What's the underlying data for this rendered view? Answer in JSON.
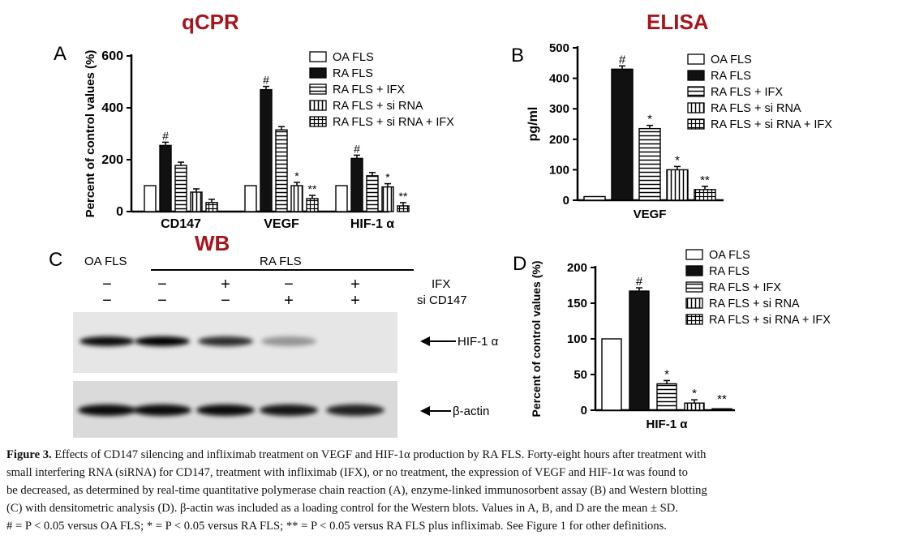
{
  "methods": {
    "a": "qCPR",
    "b": "ELISA",
    "c": "WB"
  },
  "colors": {
    "method_label": "#a8141c"
  },
  "legend": [
    "OA FLS",
    "RA FLS",
    "RA FLS + IFX",
    "RA FLS + si RNA",
    "RA FLS + si RNA + IFX"
  ],
  "chart_data": [
    {
      "panel": "A",
      "type": "bar",
      "ylabel": "Percent of control values (%)",
      "ylim": [
        0,
        600
      ],
      "yticks": [
        "0",
        "200",
        "400",
        "600"
      ],
      "categories": [
        "CD147",
        "VEGF",
        "HIF-1 α"
      ],
      "series": [
        {
          "name": "OA FLS",
          "values": [
            100,
            100,
            100
          ]
        },
        {
          "name": "RA FLS",
          "values": [
            255,
            470,
            205
          ]
        },
        {
          "name": "RA FLS + IFX",
          "values": [
            178,
            315,
            138
          ]
        },
        {
          "name": "RA FLS + si RNA",
          "values": [
            75,
            100,
            95
          ]
        },
        {
          "name": "RA FLS + si RNA + IFX",
          "values": [
            35,
            50,
            22
          ]
        }
      ],
      "annotations": [
        [
          "",
          "#",
          "",
          "",
          ""
        ],
        [
          "",
          "#",
          "",
          "*",
          "**"
        ],
        [
          "",
          "#",
          "",
          "*",
          "**"
        ]
      ]
    },
    {
      "panel": "B",
      "type": "bar",
      "ylabel": "pg/ml",
      "ylim": [
        0,
        500
      ],
      "yticks": [
        "0",
        "100",
        "200",
        "300",
        "400",
        "500"
      ],
      "categories": [
        "VEGF"
      ],
      "series": [
        {
          "name": "OA FLS",
          "values": [
            12
          ]
        },
        {
          "name": "RA FLS",
          "values": [
            430
          ]
        },
        {
          "name": "RA FLS + IFX",
          "values": [
            235
          ]
        },
        {
          "name": "RA FLS + si RNA",
          "values": [
            100
          ]
        },
        {
          "name": "RA FLS + si RNA + IFX",
          "values": [
            35
          ]
        }
      ],
      "annotations": [
        [
          "",
          "#",
          "*",
          "*",
          "**"
        ]
      ]
    },
    {
      "panel": "D",
      "type": "bar",
      "ylabel": "Percent of control values (%)",
      "ylim": [
        0,
        200
      ],
      "yticks": [
        "0",
        "50",
        "100",
        "150",
        "200"
      ],
      "categories": [
        "HIF-1 α"
      ],
      "series": [
        {
          "name": "OA FLS",
          "values": [
            100
          ]
        },
        {
          "name": "RA FLS",
          "values": [
            167
          ]
        },
        {
          "name": "RA FLS + IFX",
          "values": [
            37
          ]
        },
        {
          "name": "RA FLS + si RNA",
          "values": [
            10
          ]
        },
        {
          "name": "RA FLS + si RNA + IFX",
          "values": [
            2
          ]
        }
      ],
      "annotations": [
        [
          "",
          "#",
          "*",
          "*",
          "**"
        ]
      ]
    }
  ],
  "blot": {
    "panel": "C",
    "oa_label": "OA FLS",
    "ra_label": "RA FLS",
    "row_labels": [
      "IFX",
      "si CD147"
    ],
    "ifx": [
      "−",
      "−",
      "+",
      "−",
      "+"
    ],
    "si": [
      "−",
      "−",
      "−",
      "+",
      "+"
    ],
    "band_labels": [
      "HIF-1 α",
      "β-actin"
    ],
    "hif_intensity": [
      0.95,
      1.0,
      0.8,
      0.35,
      0.0
    ],
    "actin_intensity": [
      0.95,
      0.95,
      0.95,
      0.9,
      0.85
    ]
  },
  "caption": {
    "label": "Figure 3.",
    "lines": [
      "Effects of CD147 silencing and infliximab treatment on VEGF and HIF-1α production by RA FLS. Forty-eight hours after treatment with",
      "small interfering RNA (siRNA) for CD147, treatment with infliximab (IFX), or no treatment, the expression of VEGF and HIF-1α was found to",
      "be decreased, as determined by real-time quantitative polymerase chain reaction (A), enzyme-linked immunosorbent assay (B) and Western blotting",
      "(C) with densitometric analysis (D). β-actin was included as a loading control for the Western blots. Values in A, B, and D are the mean ± SD.",
      "# = P < 0.05 versus OA FLS; * = P < 0.05 versus RA FLS; ** = P < 0.05 versus RA FLS plus infliximab. See Figure 1 for other definitions."
    ]
  }
}
